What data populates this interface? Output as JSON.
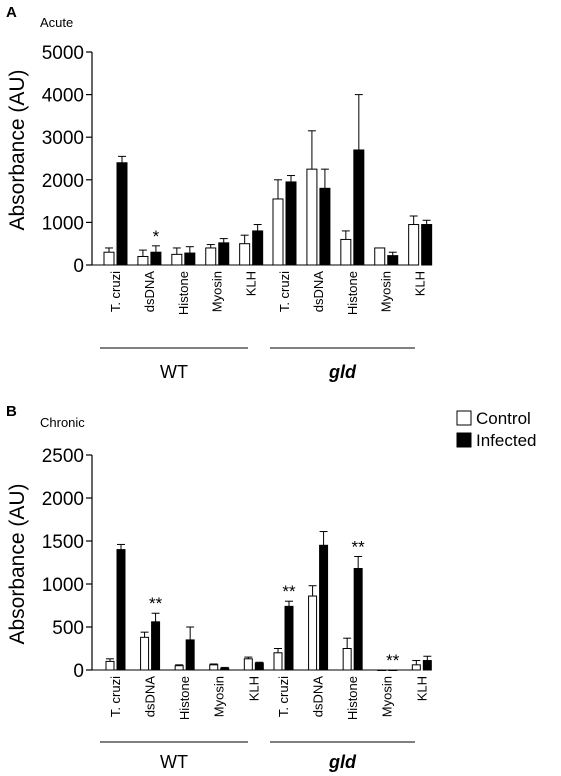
{
  "panels": [
    {
      "letter": "A",
      "title": "Acute"
    },
    {
      "letter": "B",
      "title": "Chronic"
    }
  ],
  "legend": [
    {
      "label": "Control",
      "color": "#ffffff"
    },
    {
      "label": "Infected",
      "color": "#000000"
    }
  ],
  "chart_data": [
    {
      "type": "bar",
      "title": "Acute",
      "ylabel": "Absorbance (AU)",
      "ylim": [
        0,
        5000
      ],
      "yticks": [
        0,
        1000,
        2000,
        3000,
        4000,
        5000
      ],
      "groups": [
        "WT",
        "gld"
      ],
      "categories": [
        "T. cruzi",
        "dsDNA",
        "Histone",
        "Myosin",
        "KLH"
      ],
      "series": [
        {
          "name": "Control",
          "WT": [
            300,
            200,
            250,
            400,
            500
          ],
          "WT_err": [
            100,
            150,
            150,
            80,
            200
          ],
          "gld": [
            1550,
            2250,
            600,
            400,
            950
          ],
          "gld_err": [
            450,
            900,
            200,
            0,
            200
          ]
        },
        {
          "name": "Infected",
          "WT": [
            2400,
            300,
            280,
            520,
            800
          ],
          "WT_err": [
            150,
            150,
            150,
            100,
            150
          ],
          "gld": [
            1950,
            1800,
            2700,
            220,
            950
          ],
          "gld_err": [
            150,
            450,
            1300,
            80,
            100
          ]
        }
      ],
      "annotations": [
        {
          "group": "WT",
          "category": "dsDNA",
          "series": "Infected",
          "text": "*"
        }
      ]
    },
    {
      "type": "bar",
      "title": "Chronic",
      "ylabel": "Absorbance (AU)",
      "ylim": [
        0,
        2500
      ],
      "yticks": [
        0,
        500,
        1000,
        1500,
        2000,
        2500
      ],
      "groups": [
        "WT",
        "gld"
      ],
      "categories": [
        "T. cruzi",
        "dsDNA",
        "Histone",
        "Myosin",
        "KLH"
      ],
      "series": [
        {
          "name": "Control",
          "WT": [
            100,
            380,
            50,
            60,
            130
          ],
          "WT_err": [
            30,
            60,
            10,
            10,
            20
          ],
          "gld": [
            200,
            860,
            250,
            0,
            60
          ],
          "gld_err": [
            50,
            120,
            120,
            0,
            50
          ]
        },
        {
          "name": "Infected",
          "WT": [
            1400,
            560,
            350,
            20,
            80
          ],
          "WT_err": [
            60,
            100,
            150,
            10,
            10
          ],
          "gld": [
            740,
            1450,
            1180,
            0,
            110
          ],
          "gld_err": [
            60,
            160,
            140,
            0,
            50
          ]
        }
      ],
      "annotations": [
        {
          "group": "WT",
          "category": "dsDNA",
          "series": "Infected",
          "text": "**"
        },
        {
          "group": "gld",
          "category": "T. cruzi",
          "series": "Infected",
          "text": "**"
        },
        {
          "group": "gld",
          "category": "Histone",
          "series": "Infected",
          "text": "**"
        },
        {
          "group": "gld",
          "category": "Myosin",
          "series": "Infected",
          "text": "**"
        }
      ]
    }
  ]
}
